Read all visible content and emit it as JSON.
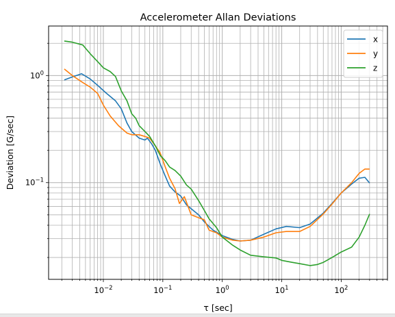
{
  "chart_data": {
    "type": "line",
    "title": "Accelerometer Allan Deviations",
    "xlabel": "τ [sec]",
    "ylabel": "Deviation [G/sec]",
    "xscale": "log",
    "yscale": "log",
    "xlim": [
      0.0012,
      600
    ],
    "ylim": [
      0.0125,
      2.9
    ],
    "grid": "major and minor",
    "legend": "top-right",
    "x_ticks": [
      {
        "base": "10",
        "exp": "−2",
        "value": 0.01
      },
      {
        "base": "10",
        "exp": "−1",
        "value": 0.1
      },
      {
        "base": "10",
        "exp": "0",
        "value": 1
      },
      {
        "base": "10",
        "exp": "1",
        "value": 10
      },
      {
        "base": "10",
        "exp": "2",
        "value": 100
      }
    ],
    "y_ticks": [
      {
        "base": "10",
        "exp": "−1",
        "value": 0.1
      },
      {
        "base": "10",
        "exp": "0",
        "value": 1
      }
    ],
    "series": [
      {
        "name": "x",
        "color": "#1f77b4",
        "points": [
          [
            0.0022,
            0.91
          ],
          [
            0.003,
            0.97
          ],
          [
            0.0043,
            1.04
          ],
          [
            0.006,
            0.93
          ],
          [
            0.008,
            0.81
          ],
          [
            0.011,
            0.69
          ],
          [
            0.016,
            0.58
          ],
          [
            0.02,
            0.49
          ],
          [
            0.025,
            0.36
          ],
          [
            0.03,
            0.3
          ],
          [
            0.04,
            0.26
          ],
          [
            0.05,
            0.25
          ],
          [
            0.055,
            0.26
          ],
          [
            0.065,
            0.23
          ],
          [
            0.075,
            0.2
          ],
          [
            0.09,
            0.15
          ],
          [
            0.11,
            0.115
          ],
          [
            0.13,
            0.093
          ],
          [
            0.16,
            0.082
          ],
          [
            0.2,
            0.075
          ],
          [
            0.25,
            0.062
          ],
          [
            0.3,
            0.057
          ],
          [
            0.4,
            0.05
          ],
          [
            0.5,
            0.043
          ],
          [
            0.6,
            0.039
          ],
          [
            0.7,
            0.036
          ],
          [
            1,
            0.032
          ],
          [
            1.5,
            0.0295
          ],
          [
            2,
            0.0285
          ],
          [
            3,
            0.029
          ],
          [
            5,
            0.033
          ],
          [
            8,
            0.037
          ],
          [
            12,
            0.039
          ],
          [
            20,
            0.038
          ],
          [
            30,
            0.041
          ],
          [
            50,
            0.052
          ],
          [
            70,
            0.064
          ],
          [
            100,
            0.08
          ],
          [
            150,
            0.097
          ],
          [
            200,
            0.11
          ],
          [
            250,
            0.112
          ],
          [
            300,
            0.099
          ]
        ]
      },
      {
        "name": "y",
        "color": "#ff7f0e",
        "points": [
          [
            0.0022,
            1.15
          ],
          [
            0.003,
            1.0
          ],
          [
            0.0045,
            0.86
          ],
          [
            0.006,
            0.78
          ],
          [
            0.008,
            0.68
          ],
          [
            0.01,
            0.53
          ],
          [
            0.013,
            0.42
          ],
          [
            0.018,
            0.34
          ],
          [
            0.025,
            0.29
          ],
          [
            0.03,
            0.28
          ],
          [
            0.04,
            0.28
          ],
          [
            0.05,
            0.27
          ],
          [
            0.06,
            0.26
          ],
          [
            0.075,
            0.22
          ],
          [
            0.09,
            0.19
          ],
          [
            0.11,
            0.14
          ],
          [
            0.13,
            0.11
          ],
          [
            0.16,
            0.088
          ],
          [
            0.19,
            0.064
          ],
          [
            0.23,
            0.074
          ],
          [
            0.3,
            0.05
          ],
          [
            0.4,
            0.047
          ],
          [
            0.5,
            0.045
          ],
          [
            0.6,
            0.036
          ],
          [
            0.8,
            0.034
          ],
          [
            1,
            0.031
          ],
          [
            1.5,
            0.029
          ],
          [
            2,
            0.0285
          ],
          [
            3,
            0.029
          ],
          [
            5,
            0.031
          ],
          [
            8,
            0.034
          ],
          [
            12,
            0.035
          ],
          [
            20,
            0.035
          ],
          [
            30,
            0.039
          ],
          [
            50,
            0.051
          ],
          [
            70,
            0.063
          ],
          [
            100,
            0.08
          ],
          [
            150,
            0.1
          ],
          [
            200,
            0.122
          ],
          [
            250,
            0.134
          ],
          [
            300,
            0.134
          ]
        ]
      },
      {
        "name": "z",
        "color": "#2ca02c",
        "points": [
          [
            0.0022,
            2.1
          ],
          [
            0.003,
            2.05
          ],
          [
            0.0045,
            1.93
          ],
          [
            0.006,
            1.6
          ],
          [
            0.008,
            1.35
          ],
          [
            0.01,
            1.18
          ],
          [
            0.013,
            1.09
          ],
          [
            0.016,
            0.98
          ],
          [
            0.02,
            0.72
          ],
          [
            0.025,
            0.58
          ],
          [
            0.03,
            0.44
          ],
          [
            0.035,
            0.4
          ],
          [
            0.04,
            0.34
          ],
          [
            0.05,
            0.3
          ],
          [
            0.06,
            0.27
          ],
          [
            0.075,
            0.22
          ],
          [
            0.09,
            0.18
          ],
          [
            0.11,
            0.16
          ],
          [
            0.13,
            0.14
          ],
          [
            0.16,
            0.13
          ],
          [
            0.2,
            0.115
          ],
          [
            0.25,
            0.095
          ],
          [
            0.3,
            0.087
          ],
          [
            0.4,
            0.068
          ],
          [
            0.5,
            0.055
          ],
          [
            0.6,
            0.046
          ],
          [
            0.8,
            0.038
          ],
          [
            1,
            0.031
          ],
          [
            1.5,
            0.026
          ],
          [
            2,
            0.0235
          ],
          [
            3,
            0.021
          ],
          [
            5,
            0.0203
          ],
          [
            8,
            0.0198
          ],
          [
            10,
            0.0188
          ],
          [
            15,
            0.018
          ],
          [
            20,
            0.0175
          ],
          [
            30,
            0.0168
          ],
          [
            40,
            0.0172
          ],
          [
            50,
            0.018
          ],
          [
            70,
            0.02
          ],
          [
            100,
            0.0225
          ],
          [
            150,
            0.025
          ],
          [
            200,
            0.031
          ],
          [
            250,
            0.04
          ],
          [
            300,
            0.051
          ]
        ]
      }
    ]
  }
}
